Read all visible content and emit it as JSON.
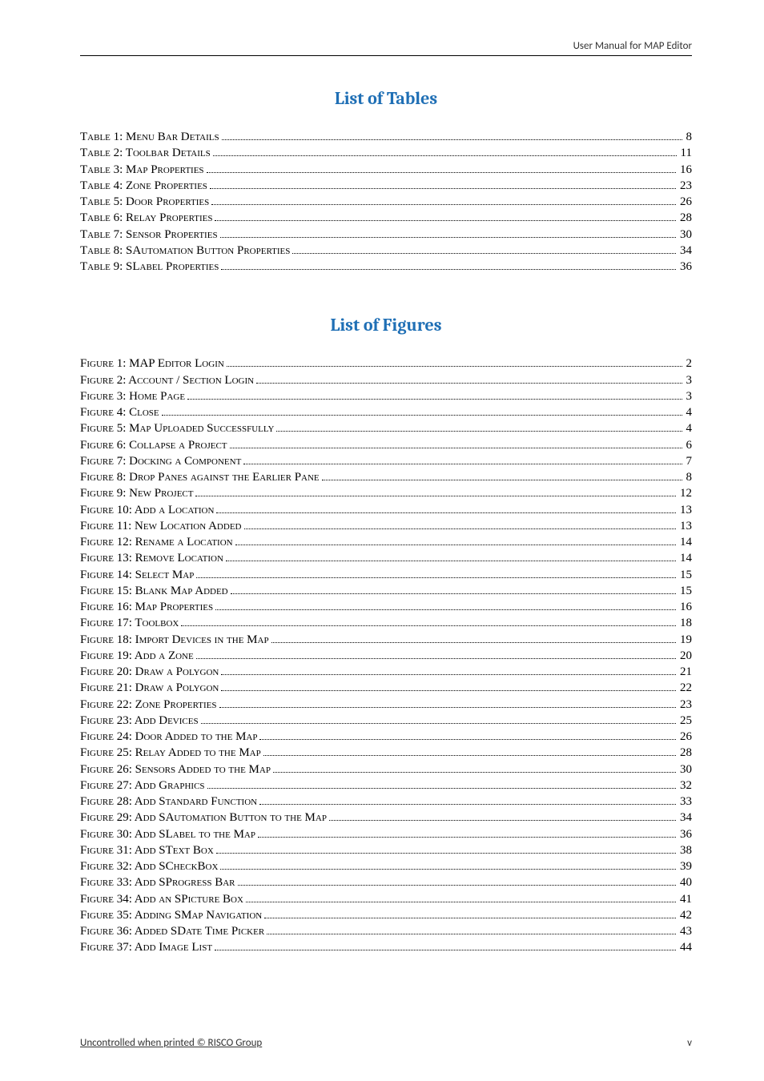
{
  "header": {
    "title": "User Manual for MAP Editor"
  },
  "sections": {
    "tables": {
      "title": "List of Tables",
      "title_color": "#1f6fb5",
      "title_fontsize": 22,
      "entries": [
        {
          "label": "Table 1: Menu Bar Details",
          "page": "8"
        },
        {
          "label": "Table 2: Toolbar Details",
          "page": "11"
        },
        {
          "label": "Table 3: Map Properties",
          "page": "16"
        },
        {
          "label": "Table 4: Zone Properties",
          "page": "23"
        },
        {
          "label": "Table 5: Door Properties",
          "page": "26"
        },
        {
          "label": "Table 6: Relay Properties",
          "page": "28"
        },
        {
          "label": "Table 7: Sensor Properties",
          "page": "30"
        },
        {
          "label": "Table 8: SAutomation Button Properties",
          "page": "34"
        },
        {
          "label": "Table 9: SLabel Properties",
          "page": "36"
        }
      ]
    },
    "figures": {
      "title": "List of Figures",
      "title_color": "#1f6fb5",
      "title_fontsize": 22,
      "entries": [
        {
          "label": "Figure 1: MAP Editor Login",
          "page": "2"
        },
        {
          "label": "Figure 2: Account / Section Login",
          "page": "3"
        },
        {
          "label": "Figure 3: Home Page",
          "page": "3"
        },
        {
          "label": "Figure 4: Close",
          "page": "4"
        },
        {
          "label": "Figure 5: Map Uploaded Successfully",
          "page": "4"
        },
        {
          "label": "Figure 6: Collapse a Project",
          "page": "6"
        },
        {
          "label": "Figure 7: Docking a Component",
          "page": "7"
        },
        {
          "label": "Figure 8: Drop Panes against the Earlier Pane",
          "page": "8"
        },
        {
          "label": "Figure 9: New Project",
          "page": "12"
        },
        {
          "label": "Figure 10: Add a Location",
          "page": "13"
        },
        {
          "label": "Figure 11: New Location Added",
          "page": "13"
        },
        {
          "label": "Figure 12: Rename a Location",
          "page": "14"
        },
        {
          "label": "Figure 13: Remove Location",
          "page": "14"
        },
        {
          "label": "Figure 14: Select Map",
          "page": "15"
        },
        {
          "label": "Figure 15: Blank Map Added",
          "page": "15"
        },
        {
          "label": "Figure 16: Map Properties",
          "page": "16"
        },
        {
          "label": "Figure 17: Toolbox",
          "page": "18"
        },
        {
          "label": "Figure 18: Import Devices in the Map",
          "page": "19"
        },
        {
          "label": "Figure 19: Add a Zone",
          "page": "20"
        },
        {
          "label": "Figure 20: Draw a Polygon",
          "page": "21"
        },
        {
          "label": "Figure 21: Draw a Polygon",
          "page": "22"
        },
        {
          "label": "Figure 22: Zone Properties",
          "page": "23"
        },
        {
          "label": "Figure 23: Add Devices",
          "page": "25"
        },
        {
          "label": "Figure 24: Door Added to the Map",
          "page": "26"
        },
        {
          "label": "Figure 25: Relay Added to the Map",
          "page": "28"
        },
        {
          "label": "Figure 26: Sensors Added to the Map",
          "page": "30"
        },
        {
          "label": "Figure 27: Add Graphics",
          "page": "32"
        },
        {
          "label": "Figure 28: Add Standard Function",
          "page": "33"
        },
        {
          "label": "Figure 29: Add SAutomation Button to the Map",
          "page": "34"
        },
        {
          "label": "Figure 30: Add SLabel to the Map",
          "page": "36"
        },
        {
          "label": "Figure 31: Add SText Box",
          "page": "38"
        },
        {
          "label": "Figure 32: Add SCheckBox",
          "page": "39"
        },
        {
          "label": "Figure 33: Add SProgress Bar",
          "page": "40"
        },
        {
          "label": "Figure 34: Add an SPicture Box",
          "page": "41"
        },
        {
          "label": "Figure 35: Adding SMap Navigation",
          "page": "42"
        },
        {
          "label": "Figure 36: Added SDate Time Picker",
          "page": "43"
        },
        {
          "label": "Figure 37: Add Image List",
          "page": "44"
        }
      ]
    }
  },
  "footer": {
    "left": "Uncontrolled when printed © RISCO Group",
    "right": "v"
  },
  "styling": {
    "body_font": "Times New Roman",
    "body_fontsize": 15,
    "header_font": "Calibri",
    "header_fontsize": 13,
    "text_color": "#000000",
    "background_color": "#ffffff",
    "rule_color": "#000000"
  }
}
